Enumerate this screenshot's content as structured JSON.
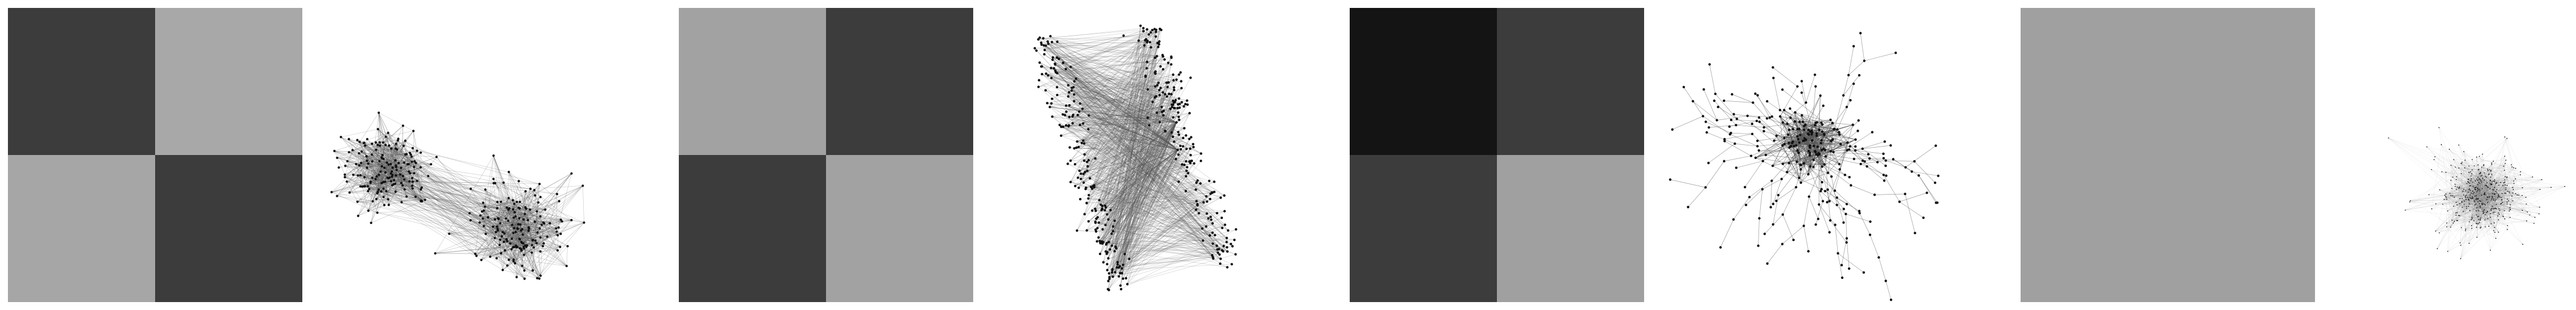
{
  "panels": [
    {
      "matrix": {
        "cells": [
          "#3c3c3c",
          "#a8a8a8",
          "#a6a6a6",
          "#3c3c3c"
        ]
      },
      "graph": {
        "layout": "two-clusters-horizontal"
      }
    },
    {
      "matrix": {
        "cells": [
          "#a2a2a2",
          "#3c3c3c",
          "#3c3c3c",
          "#a2a2a2"
        ]
      },
      "graph": {
        "layout": "bipartite-diagonal"
      }
    },
    {
      "matrix": {
        "cells": [
          "#141414",
          "#3c3c3c",
          "#3c3c3c",
          "#a0a0a0"
        ]
      },
      "graph": {
        "layout": "core-with-trees"
      }
    },
    {
      "matrix": {
        "cells": [
          "#a0a0a0",
          "#a0a0a0",
          "#a0a0a0",
          "#a0a0a0"
        ]
      },
      "graph": {
        "layout": "dense-random"
      }
    }
  ],
  "colors": {
    "node": "#111111",
    "edge": "#555555",
    "background": "#ffffff"
  }
}
